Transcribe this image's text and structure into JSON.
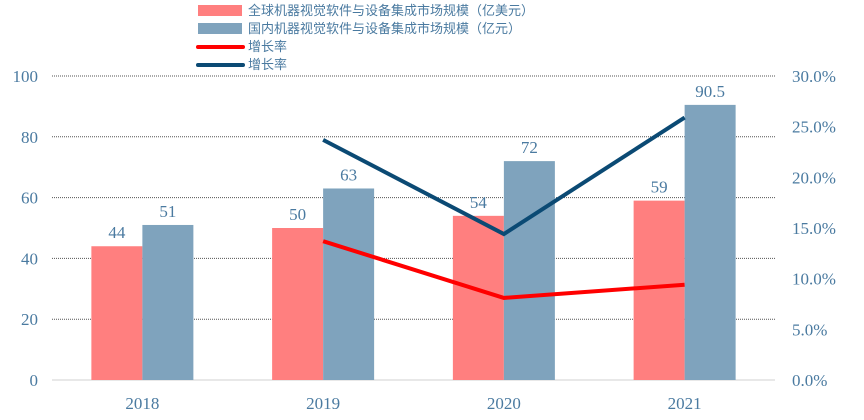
{
  "chart_data": {
    "type": "bar",
    "title": "",
    "xlabel": "",
    "ylabel": "",
    "categories": [
      "2018",
      "2019",
      "2020",
      "2021"
    ],
    "series": [
      {
        "name": "全球机器视觉软件与设备集成市场规模（亿美元）",
        "type": "bar",
        "axis": "left",
        "color": "#ff7f7f",
        "values": [
          44,
          50,
          54,
          59
        ]
      },
      {
        "name": "国内机器视觉软件与设备集成市场规模（亿元）",
        "type": "bar",
        "axis": "left",
        "color": "#7fa3bd",
        "values": [
          51,
          63,
          72,
          90.5
        ]
      },
      {
        "name": "增长率",
        "type": "line",
        "axis": "right",
        "color": "#ff0000",
        "values": [
          null,
          13.7,
          8.1,
          9.4
        ]
      },
      {
        "name": "增长率",
        "type": "line",
        "axis": "right",
        "color": "#0b4a74",
        "values": [
          null,
          23.7,
          14.4,
          25.9
        ]
      }
    ],
    "data_labels": {
      "series0": [
        "44",
        "50",
        "54",
        "59"
      ],
      "series1": [
        "51",
        "63",
        "72",
        "90.5"
      ]
    },
    "ylim": [
      0,
      100
    ],
    "y_ticks": [
      "0",
      "20",
      "40",
      "60",
      "80",
      "100"
    ],
    "y2lim": [
      0,
      30
    ],
    "y2_ticks": [
      "0.0%",
      "5.0%",
      "10.0%",
      "15.0%",
      "20.0%",
      "25.0%",
      "30.0%"
    ],
    "grid": true,
    "legend_position": "top"
  },
  "legend": [
    {
      "label": "全球机器视觉软件与设备集成市场规模（亿美元）",
      "kind": "bar",
      "color": "#ff7f7f"
    },
    {
      "label": "国内机器视觉软件与设备集成市场规模（亿元）",
      "kind": "bar",
      "color": "#7fa3bd"
    },
    {
      "label": "增长率",
      "kind": "line",
      "color": "#ff0000"
    },
    {
      "label": "增长率",
      "kind": "line",
      "color": "#0b4a74"
    }
  ]
}
